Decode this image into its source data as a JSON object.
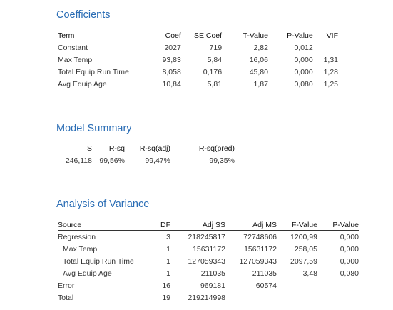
{
  "coefficients": {
    "title": "Coefficients",
    "headers": [
      "Term",
      "Coef",
      "SE Coef",
      "T-Value",
      "P-Value",
      "VIF"
    ],
    "rows": [
      [
        "Constant",
        "2027",
        "719",
        "2,82",
        "0,012",
        ""
      ],
      [
        "Max Temp",
        "93,83",
        "5,84",
        "16,06",
        "0,000",
        "1,31"
      ],
      [
        "Total Equip Run Time",
        "8,058",
        "0,176",
        "45,80",
        "0,000",
        "1,28"
      ],
      [
        "Avg Equip Age",
        "10,84",
        "5,81",
        "1,87",
        "0,080",
        "1,25"
      ]
    ]
  },
  "model_summary": {
    "title": "Model Summary",
    "headers": [
      "S",
      "R-sq",
      "R-sq(adj)",
      "R-sq(pred)"
    ],
    "rows": [
      [
        "246,118",
        "99,56%",
        "99,47%",
        "99,35%"
      ]
    ]
  },
  "anova": {
    "title": "Analysis of Variance",
    "headers": [
      "Source",
      "DF",
      "Adj SS",
      "Adj MS",
      "F-Value",
      "P-Value"
    ],
    "rows": [
      [
        "Regression",
        "3",
        "218245817",
        "72748606",
        "1200,99",
        "0,000"
      ],
      [
        "Max Temp",
        "1",
        "15631172",
        "15631172",
        "258,05",
        "0,000"
      ],
      [
        "Total Equip Run Time",
        "1",
        "127059343",
        "127059343",
        "2097,59",
        "0,000"
      ],
      [
        "Avg Equip Age",
        "1",
        "211035",
        "211035",
        "3,48",
        "0,080"
      ],
      [
        "Error",
        "16",
        "969181",
        "60574",
        "",
        ""
      ],
      [
        "Total",
        "19",
        "219214998",
        "",
        "",
        ""
      ]
    ]
  }
}
